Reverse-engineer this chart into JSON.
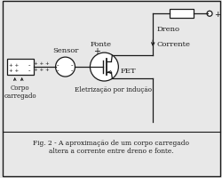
{
  "bg_color": "#e8e8e8",
  "line_color": "#1a1a1a",
  "title": "Fig. 2 - A aproximação de um corpo carregado\naltera a corrente entre dreno e fonte.",
  "label_sensor": "Sensor",
  "label_corpo": "Corpo\ncarregado",
  "label_fonte": "Fonte",
  "label_dreno": "Dreno",
  "label_corrente": "Corrente",
  "label_fet": "FET",
  "label_elet": "Eletrização por indução",
  "fig_width": 2.5,
  "fig_height": 2.01,
  "dpi": 100
}
